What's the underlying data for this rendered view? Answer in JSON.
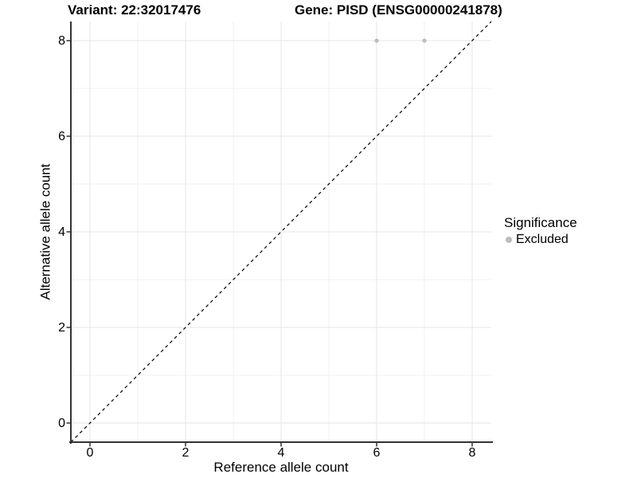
{
  "titles": {
    "left": "Variant: 22:32017476",
    "right": "Gene: PISD (ENSG00000241878)"
  },
  "chart_data": {
    "type": "scatter",
    "title_left": "Variant: 22:32017476",
    "title_right": "Gene: PISD (ENSG00000241878)",
    "xlabel": "Reference allele count",
    "ylabel": "Alternative allele count",
    "xlim": [
      -0.4,
      8.4
    ],
    "ylim": [
      -0.4,
      8.4
    ],
    "x_ticks": [
      0,
      2,
      4,
      6,
      8
    ],
    "y_ticks": [
      0,
      2,
      4,
      6,
      8
    ],
    "x_tick_labels": [
      "0",
      "2",
      "4",
      "6",
      "8"
    ],
    "y_tick_labels": [
      "0",
      "2",
      "4",
      "6",
      "8"
    ],
    "minor_ticks": [
      1,
      3,
      5,
      7
    ],
    "grid": "on",
    "series": [
      {
        "name": "Excluded",
        "color": "#bdbdbd",
        "points": [
          [
            6,
            8
          ],
          [
            7,
            8
          ]
        ]
      }
    ],
    "reference_line": {
      "type": "identity y=x",
      "style": "dashed",
      "color": "#000000",
      "from": [
        -0.4,
        -0.4
      ],
      "to": [
        8.4,
        8.4
      ]
    },
    "legend": {
      "title": "Significance",
      "position": "right",
      "items": [
        {
          "label": "Excluded",
          "color": "#bdbdbd"
        }
      ]
    }
  },
  "colors": {
    "background": "#ffffff",
    "grid_major": "#e4e4e4",
    "grid_minor": "#f0f0f0",
    "axis_line": "#333333",
    "point": "#bdbdbd",
    "text": "#000000"
  }
}
